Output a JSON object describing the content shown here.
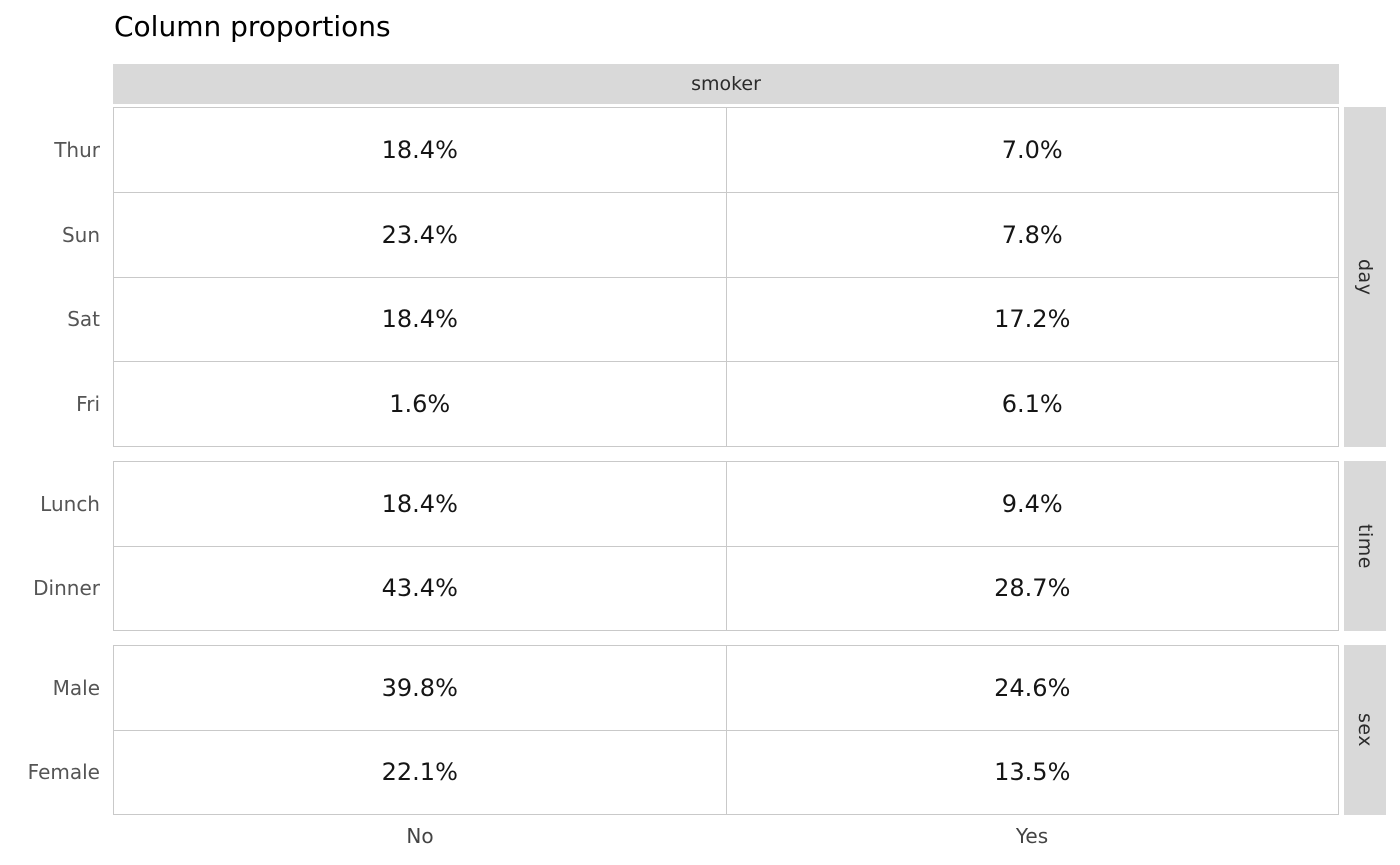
{
  "chart_data": {
    "type": "table",
    "title": "Column proportions",
    "column_group_label": "smoker",
    "columns": [
      "No",
      "Yes"
    ],
    "row_groups": [
      {
        "label": "day",
        "rows": [
          {
            "label": "Thur",
            "values": [
              "18.4%",
              "7.0%"
            ]
          },
          {
            "label": "Sun",
            "values": [
              "23.4%",
              "7.8%"
            ]
          },
          {
            "label": "Sat",
            "values": [
              "18.4%",
              "17.2%"
            ]
          },
          {
            "label": "Fri",
            "values": [
              "1.6%",
              "6.1%"
            ]
          }
        ]
      },
      {
        "label": "time",
        "rows": [
          {
            "label": "Lunch",
            "values": [
              "18.4%",
              "9.4%"
            ]
          },
          {
            "label": "Dinner",
            "values": [
              "43.4%",
              "28.7%"
            ]
          }
        ]
      },
      {
        "label": "sex",
        "rows": [
          {
            "label": "Male",
            "values": [
              "39.8%",
              "24.6%"
            ]
          },
          {
            "label": "Female",
            "values": [
              "22.1%",
              "13.5%"
            ]
          }
        ]
      }
    ],
    "layout": {
      "legend": "none",
      "grid": "cell-borders",
      "column_header_position": "top",
      "row_group_label_position": "right-rotated"
    },
    "colors": {
      "header_band": "#d9d9d9",
      "side_band": "#d9d9d9",
      "cell_border": "#c9c9c9",
      "row_label_text": "#555555",
      "value_text": "#151515"
    }
  }
}
